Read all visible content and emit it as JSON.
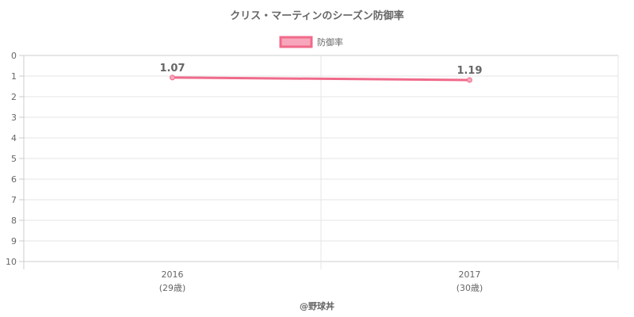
{
  "chart_data": {
    "type": "line",
    "title": "クリス・マーティンのシーズン防御率",
    "legend": {
      "position": "top",
      "entries": [
        "防御率"
      ]
    },
    "x": [
      "2016",
      "2017"
    ],
    "x_sublabels": [
      "(29歳)",
      "(30歳)"
    ],
    "series": [
      {
        "name": "防御率",
        "values": [
          1.07,
          1.19
        ],
        "data_labels": [
          "1.07",
          "1.19"
        ]
      }
    ],
    "y_ticks": [
      "0",
      "1",
      "2",
      "3",
      "4",
      "5",
      "6",
      "7",
      "8",
      "9",
      "10"
    ],
    "ylim": [
      0,
      10
    ],
    "y_reversed": true,
    "grid": true,
    "colors": {
      "line": "#f06a8a",
      "fill": "#f8a6bb",
      "text": "#666666",
      "grid": "#e6e6e6"
    }
  },
  "footer": {
    "credit": "@野球丼"
  }
}
